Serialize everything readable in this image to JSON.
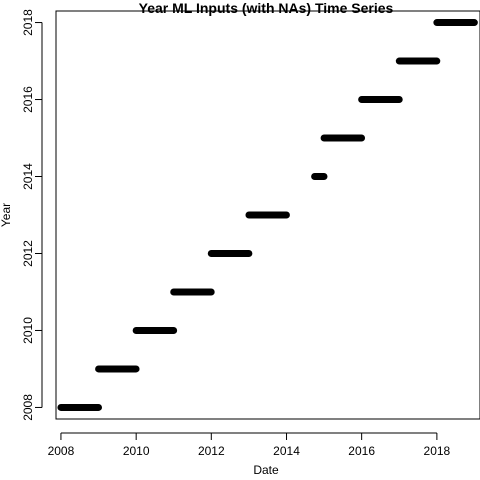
{
  "chart_data": {
    "type": "scatter",
    "title": "Year ML Inputs (with NAs) Time Series",
    "xlabel": "Date",
    "ylabel": "Year",
    "xlim": [
      "2007-11-14",
      "2019-02-24"
    ],
    "ylim": [
      2007.7,
      2018.3
    ],
    "x_ticks": [
      "2008",
      "2010",
      "2012",
      "2014",
      "2016",
      "2018"
    ],
    "y_ticks": [
      "2008",
      "2010",
      "2012",
      "2014",
      "2016",
      "2018"
    ],
    "grid": false,
    "series": [
      {
        "marker_color": "#000000",
        "segments": [
          {
            "year": 2008,
            "start": "2008-01-01",
            "end": "2008-12-31"
          },
          {
            "year": 2009,
            "start": "2009-01-01",
            "end": "2009-12-31"
          },
          {
            "year": 2010,
            "start": "2010-01-01",
            "end": "2010-12-31"
          },
          {
            "year": 2011,
            "start": "2011-01-01",
            "end": "2011-12-31"
          },
          {
            "year": 2012,
            "start": "2012-01-01",
            "end": "2012-12-31"
          },
          {
            "year": 2013,
            "start": "2013-01-01",
            "end": "2013-12-31"
          },
          {
            "year": 2014,
            "start": "2014-10-01",
            "end": "2014-12-31"
          },
          {
            "year": 2015,
            "start": "2015-01-01",
            "end": "2015-12-31"
          },
          {
            "year": 2016,
            "start": "2016-01-01",
            "end": "2016-12-31"
          },
          {
            "year": 2017,
            "start": "2017-01-01",
            "end": "2017-12-31"
          },
          {
            "year": 2018,
            "start": "2018-01-01",
            "end": "2018-12-31"
          }
        ]
      }
    ]
  }
}
